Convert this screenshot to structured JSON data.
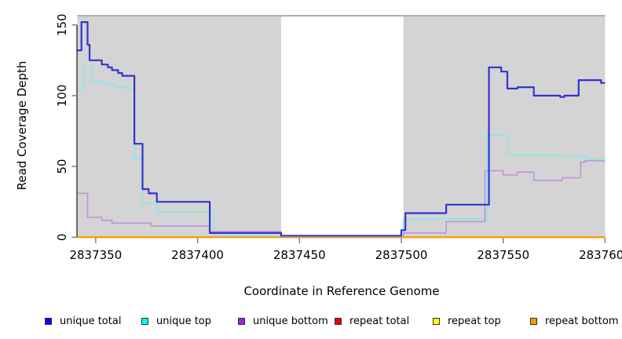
{
  "figure": {
    "kind": "R-style step plot of read coverage depth across a reference genome window"
  },
  "chart_data": {
    "type": "line",
    "subtype": "step",
    "title": "",
    "xlabel": "Coordinate in Reference Genome",
    "ylabel": "Read Coverage Depth",
    "xlim": [
      2837341,
      2837600
    ],
    "ylim": [
      0,
      155
    ],
    "x_ticks": [
      2837350,
      2837400,
      2837450,
      2837500,
      2837550,
      2837600
    ],
    "y_ticks": [
      0,
      50,
      100,
      150
    ],
    "grid": "off",
    "legend_position": "bottom",
    "panel_bg": "#d4d4d4",
    "panel_top_border_color": "#999999",
    "axis_tick_color": "#808080",
    "axis_line_color": "#333333",
    "masked_region": {
      "x_start": 2837441,
      "x_end": 2837501,
      "color": "#ffffff"
    },
    "series": [
      {
        "name": "unique total",
        "line_color": "#3232d2",
        "legend_color": "#0000ff",
        "width": 2.2,
        "z": 6,
        "steps": [
          [
            2837341,
            132
          ],
          [
            2837343,
            152
          ],
          [
            2837346,
            136
          ],
          [
            2837347,
            125
          ],
          [
            2837353,
            122
          ],
          [
            2837356,
            120
          ],
          [
            2837358,
            118
          ],
          [
            2837361,
            116
          ],
          [
            2837363,
            114
          ],
          [
            2837369,
            66
          ],
          [
            2837373,
            34
          ],
          [
            2837376,
            31
          ],
          [
            2837380,
            25
          ],
          [
            2837406,
            3
          ],
          [
            2837441,
            1
          ],
          [
            2837500,
            5
          ],
          [
            2837502,
            17
          ],
          [
            2837522,
            23
          ],
          [
            2837543,
            120
          ],
          [
            2837549,
            117
          ],
          [
            2837552,
            105
          ],
          [
            2837557,
            106
          ],
          [
            2837565,
            100
          ],
          [
            2837578,
            99
          ],
          [
            2837580,
            100
          ],
          [
            2837587,
            111
          ],
          [
            2837598,
            109
          ]
        ]
      },
      {
        "name": "unique top",
        "line_color": "#87e8e8",
        "legend_color": "#00ffff",
        "width": 1.6,
        "z": 4,
        "steps": [
          [
            2837341,
            103
          ],
          [
            2837344,
            120
          ],
          [
            2837348,
            110
          ],
          [
            2837354,
            108
          ],
          [
            2837360,
            106
          ],
          [
            2837365,
            105
          ],
          [
            2837369,
            55
          ],
          [
            2837373,
            24
          ],
          [
            2837380,
            18
          ],
          [
            2837408,
            1
          ],
          [
            2837501,
            13
          ],
          [
            2837542,
            72
          ],
          [
            2837552,
            58
          ],
          [
            2837578,
            57
          ],
          [
            2837591,
            55
          ]
        ]
      },
      {
        "name": "unique bottom",
        "line_color": "#bd93dc",
        "legend_color": "#a020f0",
        "width": 1.6,
        "z": 5,
        "steps": [
          [
            2837341,
            31
          ],
          [
            2837346,
            14
          ],
          [
            2837353,
            12
          ],
          [
            2837358,
            10
          ],
          [
            2837377,
            8
          ],
          [
            2837406,
            4
          ],
          [
            2837441,
            1
          ],
          [
            2837501,
            3
          ],
          [
            2837522,
            11
          ],
          [
            2837541,
            47
          ],
          [
            2837550,
            44
          ],
          [
            2837557,
            46
          ],
          [
            2837565,
            40
          ],
          [
            2837579,
            42
          ],
          [
            2837588,
            53
          ],
          [
            2837590,
            54
          ]
        ]
      },
      {
        "name": "repeat total",
        "line_color": "#ee0000",
        "legend_color": "#ee0000",
        "width": 2,
        "z": 1,
        "steps": [
          [
            2837341,
            0
          ]
        ]
      },
      {
        "name": "repeat top",
        "line_color": "#ffff00",
        "legend_color": "#ffff00",
        "width": 2,
        "z": 2,
        "steps": [
          [
            2837341,
            0
          ]
        ]
      },
      {
        "name": "repeat bottom",
        "line_color": "#ff9900",
        "legend_color": "#ff9900",
        "width": 2,
        "z": 3,
        "steps": [
          [
            2837341,
            0
          ]
        ]
      }
    ]
  }
}
